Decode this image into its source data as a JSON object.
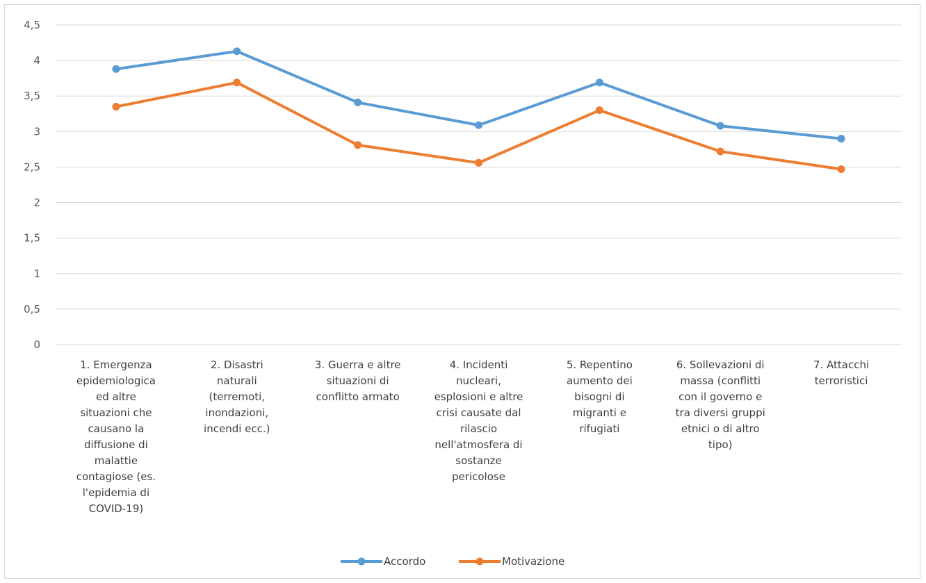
{
  "chart_data": {
    "type": "line",
    "categories": [
      "1. Emergenza epidemiologica ed altre situazioni che causano la diffusione di malattie contagiose (es. l'epidemia di COVID-19)",
      "2. Disastri naturali (terremoti, inondazioni, incendi ecc.)",
      "3. Guerra e altre situazioni di conflitto armato",
      "4. Incidenti nucleari, esplosioni e altre crisi causate dal rilascio nell'atmosfera di sostanze pericolose",
      "5. Repentino aumento dei bisogni di migranti e rifugiati",
      "6. Sollevazioni di massa (conflitti con il governo e tra diversi gruppi etnici o di altro tipo)",
      "7. Attacchi terroristici"
    ],
    "category_lines": [
      [
        "1. Emergenza",
        "epidemiologica",
        "ed altre",
        "situazioni che",
        "causano la",
        "diffusione di",
        "malattie",
        "contagiose (es.",
        "l'epidemia di",
        "COVID-19)"
      ],
      [
        "2. Disastri",
        "naturali",
        "(terremoti,",
        "inondazioni,",
        "incendi ecc.)"
      ],
      [
        "3. Guerra e altre",
        "situazioni di",
        "conflitto armato"
      ],
      [
        "4. Incidenti",
        "nucleari,",
        "esplosioni e altre",
        "crisi causate dal",
        "rilascio",
        "nell'atmosfera di",
        "sostanze",
        "pericolose"
      ],
      [
        "5. Repentino",
        "aumento dei",
        "bisogni di",
        "migranti e",
        "rifugiati"
      ],
      [
        "6. Sollevazioni di",
        "massa (conflitti",
        "con il governo e",
        "tra diversi gruppi",
        "etnici o di altro",
        "tipo)"
      ],
      [
        "7. Attacchi",
        "terroristici"
      ]
    ],
    "series": [
      {
        "name": "Accordo",
        "color": "#5b9bd5",
        "values": [
          3.88,
          4.13,
          3.41,
          3.09,
          3.69,
          3.08,
          2.9
        ]
      },
      {
        "name": "Motivazione",
        "color": "#ed7d31",
        "values": [
          3.35,
          3.69,
          2.81,
          2.56,
          3.3,
          2.72,
          2.47
        ]
      }
    ],
    "ylim": [
      0,
      4.5
    ],
    "yticks": [
      "0",
      "0,5",
      "1",
      "1,5",
      "2",
      "2,5",
      "3",
      "3,5",
      "4",
      "4,5"
    ],
    "grid": true,
    "legend_position": "bottom"
  }
}
